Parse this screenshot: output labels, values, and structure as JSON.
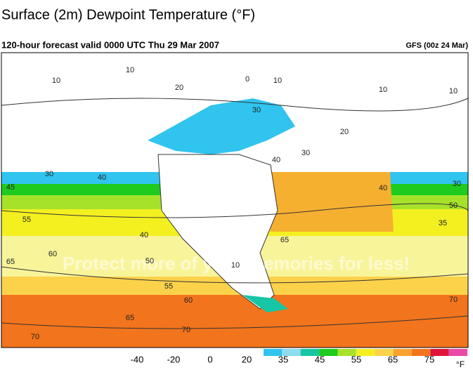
{
  "header": {
    "title": "Surface (2m) Dewpoint Temperature (°F)",
    "subtitle": "120-hour forecast valid 0000 UTC Thu 29 Mar 2007",
    "model": "GFS (00z 24 Mar)"
  },
  "map": {
    "contour_labels": [
      10,
      10,
      20,
      0,
      10,
      10,
      10,
      30,
      20,
      30,
      40,
      40,
      30,
      45,
      40,
      30,
      50,
      35,
      55,
      40,
      60,
      65,
      50,
      10,
      65,
      55,
      60,
      70,
      65,
      70,
      70
    ],
    "watermark": "Protect more of your memories for less!"
  },
  "colorbar": {
    "ticks": [
      -40,
      -20,
      0,
      20,
      35,
      45,
      55,
      65,
      75
    ],
    "unit": "°F",
    "colors": [
      "#30c4ef",
      "#8ddcf0",
      "#16c6a4",
      "#1ecb1e",
      "#a6e22a",
      "#f4f020",
      "#fbd24a",
      "#f8a230",
      "#f2741c",
      "#e0143a",
      "#e84aa6"
    ]
  }
}
